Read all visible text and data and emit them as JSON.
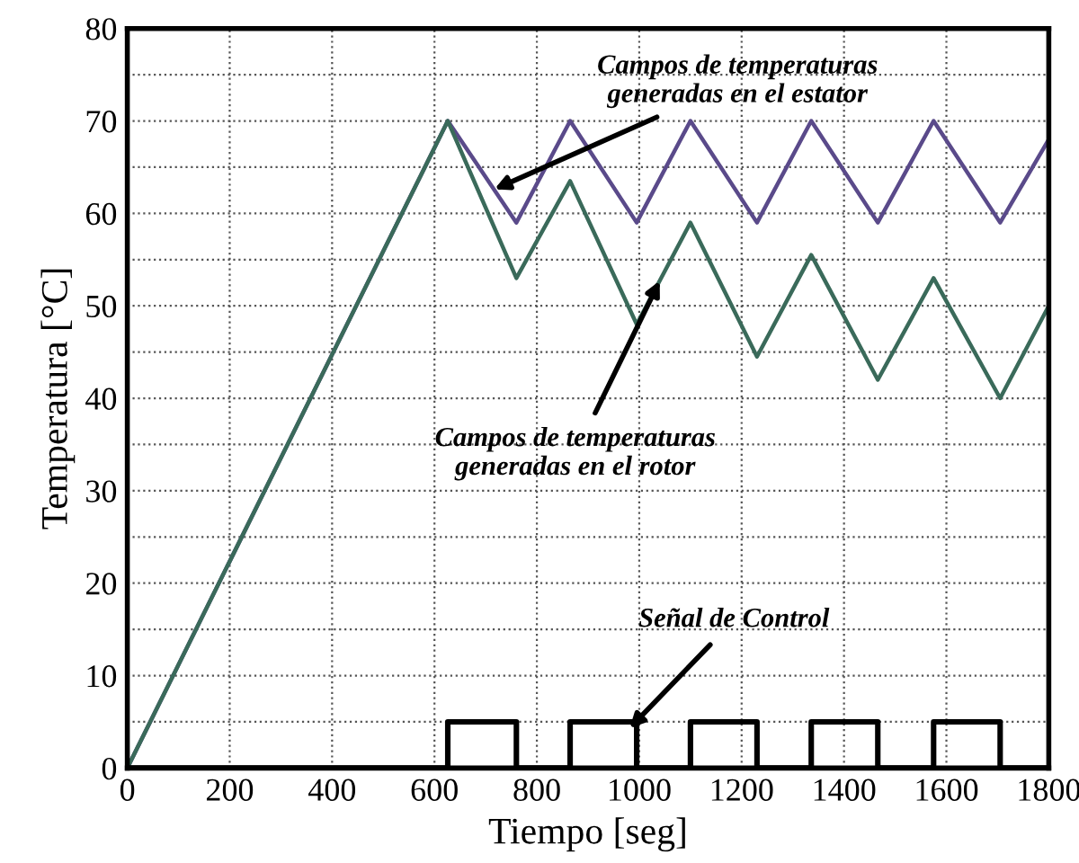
{
  "chart_data": {
    "type": "line",
    "xlabel": "Tiempo [seg]",
    "ylabel": "Temperatura [°C]",
    "xlim": [
      0,
      1800
    ],
    "xticks": [
      0,
      200,
      400,
      600,
      800,
      1000,
      1200,
      1400,
      1600,
      1800
    ],
    "ylim": [
      0,
      80
    ],
    "yticks": [
      0,
      {
        "value": 5,
        "label": null
      },
      10,
      {
        "value": 15,
        "label": null
      },
      20,
      {
        "value": 25,
        "label": null
      },
      30,
      {
        "value": 35,
        "label": null
      },
      40,
      {
        "value": 45,
        "label": null
      },
      50,
      {
        "value": 55,
        "label": null
      },
      60,
      {
        "value": 65,
        "label": null
      },
      70,
      {
        "value": 75,
        "label": null
      },
      80
    ],
    "grid": true,
    "line_style": "solid",
    "series": [
      {
        "color": "#5a4a8a",
        "x": [
          0,
          626,
          760,
          865,
          995,
          1100,
          1230,
          1336,
          1466,
          1575,
          1705,
          1800
        ],
        "values": [
          0,
          70,
          59,
          70,
          59,
          70,
          59,
          70,
          59,
          70,
          59,
          68
        ]
      },
      {
        "color": "#3a6a5a",
        "x": [
          0,
          626,
          760,
          865,
          995,
          1100,
          1230,
          1336,
          1466,
          1575,
          1705,
          1800
        ],
        "values": [
          0,
          70,
          53,
          63.5,
          48,
          59,
          44.5,
          55.5,
          42,
          53,
          40,
          50
        ]
      },
      {
        "type": "step",
        "color": "#000000",
        "x": [
          0,
          626,
          760,
          865,
          995,
          1100,
          1230,
          1336,
          1466,
          1575,
          1705,
          1800
        ],
        "values": [
          0,
          5,
          0,
          5,
          0,
          5,
          0,
          5,
          0,
          5,
          0,
          0
        ]
      }
    ],
    "annotations": [
      {
        "text": "Campos de temperaturas\ngeneradas en el estator",
        "x": 717,
        "y": 62.6
      },
      {
        "text": "Campos de temperaturas\ngeneradas en el rotor",
        "x": 1040,
        "y": 52.7
      },
      {
        "text": "Señal de Control",
        "x": 981,
        "y": 4.3
      }
    ]
  }
}
